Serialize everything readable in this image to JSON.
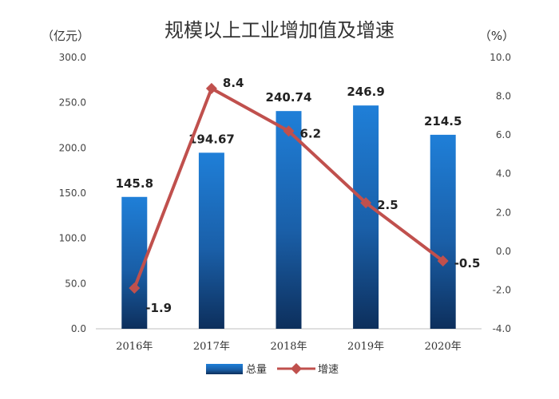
{
  "chart_data": {
    "type": "bar",
    "title": "规模以上工业增加值及增速",
    "categories": [
      "2016年",
      "2017年",
      "2018年",
      "2019年",
      "2020年"
    ],
    "left_axis": {
      "unit": "（亿元）",
      "ylim": [
        0,
        300
      ],
      "ticks": [
        "0.0",
        "50.0",
        "100.0",
        "150.0",
        "200.0",
        "250.0",
        "300.0"
      ]
    },
    "right_axis": {
      "unit": "（%）",
      "ylim": [
        -4,
        10
      ],
      "ticks": [
        "-4.0",
        "-2.0",
        "0.0",
        "2.0",
        "4.0",
        "6.0",
        "8.0",
        "10.0"
      ]
    },
    "series": [
      {
        "name": "总量",
        "type": "bar",
        "axis": "left",
        "values": [
          145.8,
          194.67,
          240.74,
          246.9,
          214.5
        ],
        "labels": [
          "145.8",
          "194.67",
          "240.74",
          "246.9",
          "214.5"
        ],
        "color": "#1f6fc4"
      },
      {
        "name": "增速",
        "type": "line",
        "axis": "right",
        "values": [
          -1.9,
          8.4,
          6.2,
          2.5,
          -0.5
        ],
        "labels": [
          "-1.9",
          "8.4",
          "6.2",
          "2.5",
          "-0.5"
        ],
        "color": "#c0504d"
      }
    ],
    "grid": false,
    "legend": "bottom"
  }
}
